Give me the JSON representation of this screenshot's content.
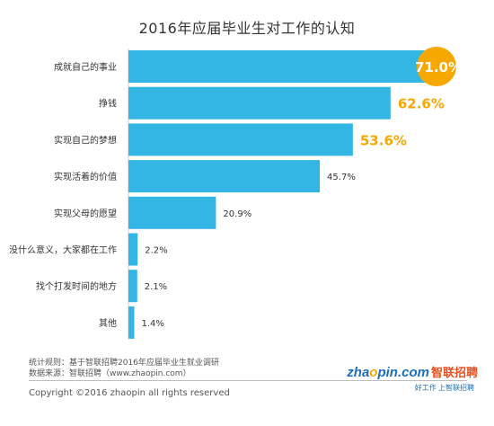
{
  "page_title": "2016年应届毕业生对工作的认知",
  "chart_data": {
    "type": "bar",
    "orientation": "horizontal",
    "title": "2016年应届毕业生对工作的认知",
    "categories": [
      "成就自己的事业",
      "挣钱",
      "实现自己的梦想",
      "实现活着的价值",
      "实现父母的愿望",
      "没什么意义，大家都在工作",
      "找个打发时间的地方",
      "其他"
    ],
    "values": [
      71.0,
      62.6,
      53.6,
      45.7,
      20.9,
      2.2,
      2.1,
      1.4
    ],
    "value_labels": [
      "71.0%",
      "62.6%",
      "53.6%",
      "45.7%",
      "20.9%",
      "2.2%",
      "2.1%",
      "1.4%"
    ],
    "highlighted_top": 3,
    "bar_color": "#34b6e4",
    "highlight_color": "#f6a800",
    "label_color": "#333333",
    "xlim": [
      0,
      71.0
    ]
  },
  "footer": {
    "rule": "统计规则：基于智联招聘2016年应届毕业生就业调研",
    "source": "数据来源：智联招聘（www.zhaopin.com）",
    "copyright": "Copyright ©2016 zhaopin all rights reserved"
  },
  "logo": {
    "brand_cn": "智联招聘",
    "wordmark_pre": "zha",
    "wordmark_dot": "o",
    "wordmark_post": "pin.com",
    "tagline": "好工作  上智联招聘"
  }
}
